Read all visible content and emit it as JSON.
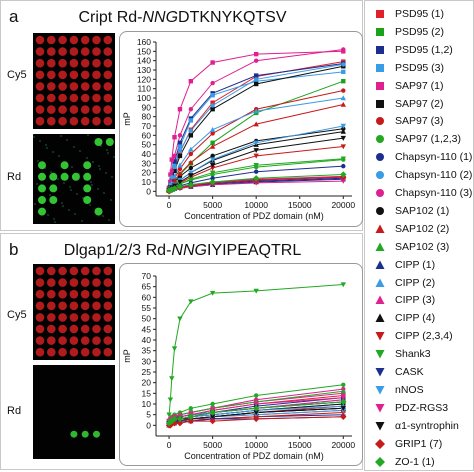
{
  "panel_a": {
    "letter": "a",
    "title_prefix": "Cript",
    "title_rd": "Rd-",
    "title_nng": "NNG",
    "title_seq": "DTKNYKQTSV",
    "cy5_label": "Cy5",
    "rd_label": "Rd"
  },
  "panel_b": {
    "letter": "b",
    "title_prefix": "Dlgap1/2/3",
    "title_rd": "Rd-",
    "title_nng": "NNG",
    "title_seq": "IYIPEAQTRL",
    "cy5_label": "Cy5",
    "rd_label": "Rd"
  },
  "legend": [
    {
      "label": "PSD95 (1)",
      "color": "#e0202a",
      "marker": "square"
    },
    {
      "label": "PSD95 (2)",
      "color": "#1aa31a",
      "marker": "square"
    },
    {
      "label": "PSD95 (1,2)",
      "color": "#1c2f8f",
      "marker": "square"
    },
    {
      "label": "PSD95 (3)",
      "color": "#3a9be6",
      "marker": "square"
    },
    {
      "label": "SAP97 (1)",
      "color": "#e0208f",
      "marker": "square"
    },
    {
      "label": "SAP97 (2)",
      "color": "#111111",
      "marker": "square"
    },
    {
      "label": "SAP97 (3)",
      "color": "#c81a1a",
      "marker": "circle"
    },
    {
      "label": "SAP97 (1,2,3)",
      "color": "#22a822",
      "marker": "circle"
    },
    {
      "label": "Chapsyn-110 (1)",
      "color": "#1c2f8f",
      "marker": "circle"
    },
    {
      "label": "Chapsyn-110 (2)",
      "color": "#3a9be6",
      "marker": "circle"
    },
    {
      "label": "Chapsyn-110 (3)",
      "color": "#e0208f",
      "marker": "circle"
    },
    {
      "label": "SAP102 (1)",
      "color": "#111111",
      "marker": "circle"
    },
    {
      "label": "SAP102 (2)",
      "color": "#c81a1a",
      "marker": "triangle-up"
    },
    {
      "label": "SAP102 (3)",
      "color": "#22a822",
      "marker": "triangle-up"
    },
    {
      "label": "CIPP (1)",
      "color": "#1c2f8f",
      "marker": "triangle-up"
    },
    {
      "label": "CIPP (2)",
      "color": "#3a9be6",
      "marker": "triangle-up"
    },
    {
      "label": "CIPP (3)",
      "color": "#e0208f",
      "marker": "triangle-up"
    },
    {
      "label": "CIPP (4)",
      "color": "#111111",
      "marker": "triangle-up"
    },
    {
      "label": "CIPP (2,3,4)",
      "color": "#c81a1a",
      "marker": "triangle-down"
    },
    {
      "label": "Shank3",
      "color": "#22a822",
      "marker": "triangle-down"
    },
    {
      "label": "CASK",
      "color": "#1c2f8f",
      "marker": "triangle-down"
    },
    {
      "label": "nNOS",
      "color": "#3a9be6",
      "marker": "triangle-down"
    },
    {
      "label": "PDZ-RGS3",
      "color": "#e0208f",
      "marker": "triangle-down"
    },
    {
      "label": "α1-syntrophin",
      "color": "#111111",
      "marker": "triangle-down"
    },
    {
      "label": "GRIP1 (7)",
      "color": "#c81a1a",
      "marker": "diamond"
    },
    {
      "label": "ZO-1 (1)",
      "color": "#22a822",
      "marker": "diamond"
    }
  ],
  "chart_data": [
    {
      "type": "scatter",
      "panel": "a",
      "xlabel": "Concentration of PDZ domain (nM)",
      "ylabel": "mP",
      "xlim": [
        -1500,
        21000
      ],
      "ylim": [
        -5,
        160
      ],
      "xticks": [
        0,
        5000,
        10000,
        15000,
        20000
      ],
      "yticks": [
        0,
        10,
        20,
        30,
        40,
        50,
        60,
        70,
        80,
        90,
        100,
        110,
        120,
        130,
        140,
        150,
        160
      ],
      "x": [
        0,
        156,
        312,
        625,
        1250,
        2500,
        5000,
        10000,
        20000
      ],
      "series": [
        {
          "name": "PSD95 (1)",
          "values": [
            3,
            8,
            14,
            25,
            42,
            66,
            95,
            123,
            139
          ]
        },
        {
          "name": "PSD95 (2)",
          "values": [
            2,
            4,
            6,
            10,
            18,
            30,
            52,
            84,
            118
          ]
        },
        {
          "name": "PSD95 (1,2)",
          "values": [
            3,
            10,
            18,
            32,
            52,
            78,
            105,
            124,
            137
          ]
        },
        {
          "name": "PSD95 (3)",
          "values": [
            2,
            7,
            14,
            27,
            48,
            76,
            103,
            118,
            128
          ]
        },
        {
          "name": "SAP97 (1)",
          "values": [
            4,
            18,
            34,
            58,
            88,
            118,
            138,
            147,
            150
          ]
        },
        {
          "name": "SAP97 (2)",
          "values": [
            2,
            6,
            12,
            22,
            38,
            60,
            88,
            115,
            134
          ]
        },
        {
          "name": "SAP97 (3)",
          "values": [
            2,
            4,
            8,
            14,
            24,
            40,
            62,
            88,
            108
          ]
        },
        {
          "name": "SAP97 (1,2,3)",
          "values": [
            1,
            2,
            3,
            5,
            8,
            12,
            18,
            26,
            34
          ]
        },
        {
          "name": "Chapsyn-110 (1)",
          "values": [
            1,
            2,
            3,
            4,
            6,
            9,
            14,
            21,
            27
          ]
        },
        {
          "name": "Chapsyn-110 (2)",
          "values": [
            3,
            8,
            15,
            26,
            43,
            65,
            92,
            120,
            136
          ]
        },
        {
          "name": "Chapsyn-110 (3)",
          "values": [
            3,
            11,
            22,
            38,
            60,
            88,
            116,
            140,
            152
          ]
        },
        {
          "name": "SAP102 (1)",
          "values": [
            1,
            3,
            6,
            10,
            16,
            25,
            38,
            54,
            67
          ]
        },
        {
          "name": "SAP102 (2)",
          "values": [
            1,
            3,
            6,
            11,
            19,
            31,
            48,
            72,
            93
          ]
        },
        {
          "name": "SAP102 (3)",
          "values": [
            1,
            1,
            2,
            3,
            4,
            6,
            9,
            12,
            16
          ]
        },
        {
          "name": "CIPP (1)",
          "values": [
            1,
            2,
            2,
            3,
            4,
            5,
            7,
            10,
            13
          ]
        },
        {
          "name": "CIPP (2)",
          "values": [
            2,
            5,
            9,
            16,
            28,
            45,
            66,
            86,
            100
          ]
        },
        {
          "name": "CIPP (3)",
          "values": [
            1,
            2,
            3,
            4,
            5,
            7,
            10,
            13,
            16
          ]
        },
        {
          "name": "CIPP (4)",
          "values": [
            1,
            2,
            4,
            7,
            12,
            20,
            33,
            50,
            64
          ]
        },
        {
          "name": "CIPP (2,3,4)",
          "values": [
            1,
            2,
            3,
            5,
            9,
            15,
            25,
            38,
            48
          ]
        },
        {
          "name": "Shank3",
          "values": [
            1,
            2,
            3,
            5,
            8,
            13,
            20,
            28,
            35
          ]
        },
        {
          "name": "CASK",
          "values": [
            0,
            1,
            2,
            3,
            4,
            6,
            8,
            11,
            14
          ]
        },
        {
          "name": "nNOS",
          "values": [
            1,
            2,
            4,
            7,
            12,
            20,
            34,
            52,
            70
          ]
        },
        {
          "name": "PDZ-RGS3",
          "values": [
            0,
            1,
            1,
            2,
            3,
            5,
            7,
            9,
            11
          ]
        },
        {
          "name": "α1-syntrophin",
          "values": [
            1,
            2,
            4,
            6,
            10,
            17,
            28,
            44,
            57
          ]
        },
        {
          "name": "GRIP1 (7)",
          "values": [
            0,
            1,
            2,
            3,
            4,
            6,
            9,
            12,
            15
          ]
        },
        {
          "name": "ZO-1 (1)",
          "values": [
            1,
            1,
            2,
            3,
            5,
            7,
            10,
            14,
            18
          ]
        }
      ]
    },
    {
      "type": "scatter",
      "panel": "b",
      "xlabel": "Concentration of PDZ domain (nM)",
      "ylabel": "mP",
      "xlim": [
        -1500,
        21000
      ],
      "ylim": [
        -5,
        70
      ],
      "xticks": [
        0,
        5000,
        10000,
        15000,
        20000
      ],
      "yticks": [
        0,
        5,
        10,
        15,
        20,
        25,
        30,
        35,
        40,
        45,
        50,
        55,
        60,
        65,
        70
      ],
      "x": [
        0,
        156,
        312,
        625,
        1250,
        2500,
        5000,
        10000,
        20000
      ],
      "series": [
        {
          "name": "PSD95 (1)",
          "values": [
            2,
            2,
            3,
            3,
            4,
            5,
            7,
            10,
            14
          ]
        },
        {
          "name": "PSD95 (2)",
          "values": [
            1,
            2,
            2,
            3,
            3,
            4,
            6,
            8,
            12
          ]
        },
        {
          "name": "PSD95 (1,2)",
          "values": [
            2,
            2,
            3,
            3,
            4,
            5,
            6,
            9,
            13
          ]
        },
        {
          "name": "PSD95 (3)",
          "values": [
            1,
            1,
            2,
            2,
            3,
            4,
            5,
            7,
            10
          ]
        },
        {
          "name": "SAP97 (1)",
          "values": [
            2,
            3,
            3,
            4,
            5,
            6,
            8,
            11,
            15
          ]
        },
        {
          "name": "SAP97 (2)",
          "values": [
            1,
            2,
            2,
            3,
            4,
            5,
            6,
            8,
            11
          ]
        },
        {
          "name": "SAP97 (3)",
          "values": [
            1,
            1,
            2,
            2,
            3,
            3,
            4,
            6,
            9
          ]
        },
        {
          "name": "SAP97 (1,2,3)",
          "values": [
            2,
            3,
            4,
            5,
            6,
            8,
            10,
            14,
            19
          ]
        },
        {
          "name": "Chapsyn-110 (1)",
          "values": [
            1,
            1,
            2,
            2,
            3,
            3,
            4,
            6,
            8
          ]
        },
        {
          "name": "Chapsyn-110 (2)",
          "values": [
            2,
            2,
            3,
            3,
            4,
            5,
            6,
            8,
            11
          ]
        },
        {
          "name": "Chapsyn-110 (3)",
          "values": [
            2,
            3,
            3,
            4,
            5,
            6,
            8,
            12,
            17
          ]
        },
        {
          "name": "SAP102 (1)",
          "values": [
            1,
            2,
            2,
            3,
            3,
            4,
            5,
            7,
            10
          ]
        },
        {
          "name": "SAP102 (2)",
          "values": [
            1,
            1,
            2,
            2,
            2,
            3,
            4,
            5,
            7
          ]
        },
        {
          "name": "SAP102 (3)",
          "values": [
            2,
            2,
            3,
            4,
            5,
            6,
            8,
            11,
            16
          ]
        },
        {
          "name": "CIPP (1)",
          "values": [
            0,
            1,
            1,
            1,
            2,
            2,
            3,
            4,
            5
          ]
        },
        {
          "name": "CIPP (2)",
          "values": [
            1,
            2,
            2,
            3,
            3,
            4,
            5,
            7,
            9
          ]
        },
        {
          "name": "CIPP (3)",
          "values": [
            1,
            2,
            2,
            3,
            3,
            4,
            6,
            8,
            12
          ]
        },
        {
          "name": "CIPP (4)",
          "values": [
            1,
            1,
            2,
            2,
            3,
            3,
            4,
            6,
            8
          ]
        },
        {
          "name": "CIPP (2,3,4)",
          "values": [
            0,
            1,
            1,
            2,
            2,
            3,
            3,
            4,
            6
          ]
        },
        {
          "name": "Shank3",
          "values": [
            5,
            12,
            22,
            36,
            50,
            58,
            62,
            63,
            66
          ]
        },
        {
          "name": "CASK",
          "values": [
            0,
            1,
            1,
            1,
            2,
            2,
            3,
            3,
            4
          ]
        },
        {
          "name": "nNOS",
          "values": [
            1,
            1,
            2,
            2,
            3,
            3,
            4,
            5,
            7
          ]
        },
        {
          "name": "PDZ-RGS3",
          "values": [
            2,
            2,
            3,
            4,
            4,
            5,
            7,
            10,
            13
          ]
        },
        {
          "name": "α1-syntrophin",
          "values": [
            1,
            1,
            2,
            2,
            3,
            3,
            4,
            6,
            8
          ]
        },
        {
          "name": "GRIP1 (7)",
          "values": [
            0,
            0,
            1,
            1,
            1,
            2,
            2,
            3,
            4
          ]
        },
        {
          "name": "ZO-1 (1)",
          "values": [
            1,
            2,
            2,
            3,
            3,
            4,
            6,
            8,
            11
          ]
        }
      ]
    }
  ]
}
